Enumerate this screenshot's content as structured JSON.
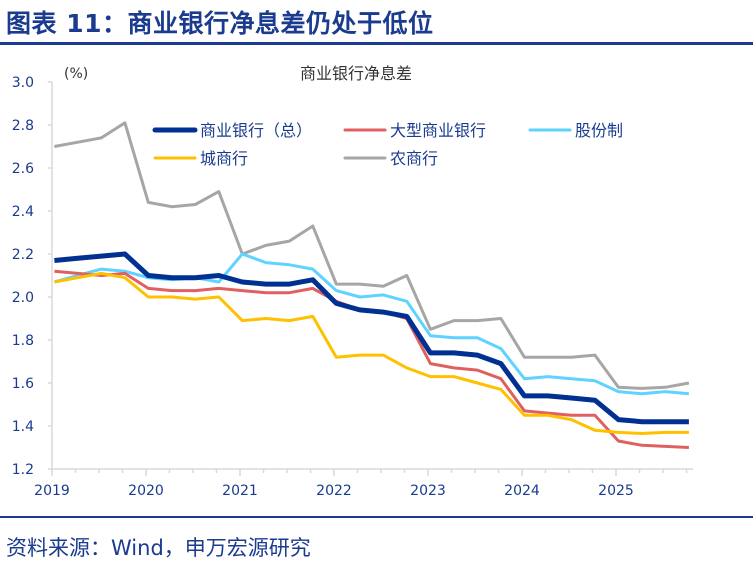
{
  "header": {
    "title": "图表 11：商业银行净息差仍处于低位"
  },
  "footer": {
    "source": "资料来源：Wind，申万宏源研究"
  },
  "chart_data": {
    "type": "line",
    "title": "商业银行净息差",
    "ylabel": "(%)",
    "xlabel": "",
    "ylim": [
      1.2,
      3.0
    ],
    "yticks": [
      "1.2",
      "1.4",
      "1.6",
      "1.8",
      "2.0",
      "2.2",
      "2.4",
      "2.6",
      "2.8",
      "3.0"
    ],
    "xticks": [
      "2019",
      "2020",
      "2021",
      "2022",
      "2023",
      "2024",
      "2025"
    ],
    "grid": false,
    "legend": "top",
    "x": [
      "2019Q1",
      "2019Q2",
      "2019Q3",
      "2019Q4",
      "2020Q1",
      "2020Q2",
      "2020Q3",
      "2020Q4",
      "2021Q1",
      "2021Q2",
      "2021Q3",
      "2021Q4",
      "2022Q1",
      "2022Q2",
      "2022Q3",
      "2022Q4",
      "2023Q1",
      "2023Q2",
      "2023Q3",
      "2023Q4",
      "2024Q1",
      "2024Q2",
      "2024Q3",
      "2024Q4",
      "2025Q1",
      "2025Q2",
      "2025Q3",
      "2025Q4"
    ],
    "series": [
      {
        "name": "商业银行（总）",
        "color": "#003192",
        "values": [
          2.17,
          2.18,
          2.19,
          2.2,
          2.1,
          2.09,
          2.09,
          2.1,
          2.07,
          2.06,
          2.06,
          2.08,
          1.97,
          1.94,
          1.93,
          1.91,
          1.74,
          1.74,
          1.73,
          1.69,
          1.54,
          1.54,
          1.53,
          1.52,
          1.43,
          1.42,
          1.42,
          1.42
        ]
      },
      {
        "name": "大型商业银行",
        "color": "#e06060",
        "values": [
          2.12,
          2.11,
          2.1,
          2.11,
          2.04,
          2.03,
          2.03,
          2.04,
          2.03,
          2.02,
          2.02,
          2.04,
          1.98,
          1.94,
          1.93,
          1.9,
          1.69,
          1.67,
          1.66,
          1.62,
          1.47,
          1.46,
          1.45,
          1.45,
          1.33,
          1.31,
          1.305,
          1.3
        ]
      },
      {
        "name": "股份制",
        "color": "#5fd3ff",
        "values": [
          2.07,
          2.1,
          2.13,
          2.12,
          2.09,
          2.08,
          2.09,
          2.07,
          2.2,
          2.16,
          2.15,
          2.13,
          2.03,
          2.0,
          2.01,
          1.98,
          1.82,
          1.81,
          1.81,
          1.76,
          1.62,
          1.63,
          1.62,
          1.61,
          1.56,
          1.55,
          1.56,
          1.55
        ]
      },
      {
        "name": "城商行",
        "color": "#ffc000",
        "values": [
          2.07,
          2.09,
          2.11,
          2.09,
          2.0,
          2.0,
          1.99,
          2.0,
          1.89,
          1.9,
          1.89,
          1.91,
          1.72,
          1.73,
          1.73,
          1.67,
          1.63,
          1.63,
          1.6,
          1.57,
          1.45,
          1.45,
          1.43,
          1.38,
          1.37,
          1.365,
          1.37,
          1.37
        ]
      },
      {
        "name": "农商行",
        "color": "#a6a6a6",
        "values": [
          2.7,
          2.72,
          2.74,
          2.81,
          2.44,
          2.42,
          2.43,
          2.49,
          2.2,
          2.24,
          2.26,
          2.33,
          2.06,
          2.06,
          2.05,
          2.1,
          1.85,
          1.89,
          1.89,
          1.9,
          1.72,
          1.72,
          1.72,
          1.73,
          1.58,
          1.575,
          1.58,
          1.6
        ]
      }
    ]
  }
}
